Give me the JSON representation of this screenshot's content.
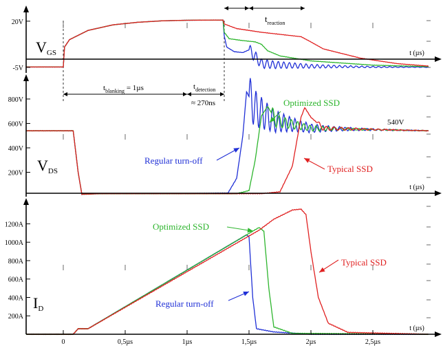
{
  "colors": {
    "regular": "#1f2fd6",
    "optimized": "#2db52d",
    "typical": "#e02020",
    "axis": "#000000",
    "tick": "#000000"
  },
  "chart_data": [
    {
      "type": "line",
      "ylabel_main": "V",
      "ylabel_sub": "GS",
      "yticks": [
        {
          "value": 20,
          "label": "20V"
        },
        {
          "value": -5,
          "label": "-5V"
        }
      ],
      "ylim": [
        -8,
        27
      ],
      "xlabel": "t (µs)",
      "annotations": {
        "t_reaction_main": "t",
        "t_reaction_sub": "reaction"
      },
      "series": [
        {
          "key": "regular",
          "points": [
            [
              -0.3,
              -4.8
            ],
            [
              0,
              -4.8
            ],
            [
              0.01,
              6
            ],
            [
              0.05,
              10
            ],
            [
              0.2,
              15
            ],
            [
              0.4,
              18
            ],
            [
              0.6,
              19.4
            ],
            [
              0.8,
              20.2
            ],
            [
              1.0,
              20.5
            ],
            [
              1.2,
              20.6
            ],
            [
              1.29,
              20.6
            ],
            [
              1.3,
              12
            ],
            [
              1.32,
              6
            ],
            [
              1.38,
              3.5
            ],
            [
              1.45,
              3
            ],
            [
              1.5,
              4.5
            ],
            [
              1.55,
              0.8
            ],
            [
              1.6,
              -3
            ],
            [
              1.7,
              -3.6
            ],
            [
              2.0,
              -4.4
            ],
            [
              2.5,
              -4.8
            ],
            [
              2.95,
              -4.9
            ]
          ]
        },
        {
          "key": "optimized",
          "points": [
            [
              -0.3,
              -4.8
            ],
            [
              0,
              -4.8
            ],
            [
              0.01,
              6
            ],
            [
              0.05,
              10
            ],
            [
              0.2,
              15
            ],
            [
              0.4,
              18
            ],
            [
              0.6,
              19.4
            ],
            [
              0.8,
              20.2
            ],
            [
              1.0,
              20.5
            ],
            [
              1.2,
              20.6
            ],
            [
              1.29,
              20.6
            ],
            [
              1.3,
              14
            ],
            [
              1.34,
              10.5
            ],
            [
              1.45,
              9.5
            ],
            [
              1.55,
              8.8
            ],
            [
              1.6,
              7.5
            ],
            [
              1.65,
              4
            ],
            [
              1.75,
              1.2
            ],
            [
              2.0,
              -1.5
            ],
            [
              2.5,
              -3.8
            ],
            [
              2.95,
              -4.6
            ]
          ]
        },
        {
          "key": "typical",
          "points": [
            [
              -0.3,
              -4.8
            ],
            [
              0,
              -4.8
            ],
            [
              0.01,
              6
            ],
            [
              0.05,
              10
            ],
            [
              0.2,
              15
            ],
            [
              0.4,
              18
            ],
            [
              0.6,
              19.4
            ],
            [
              0.8,
              20.2
            ],
            [
              1.0,
              20.5
            ],
            [
              1.2,
              20.6
            ],
            [
              1.29,
              20.6
            ],
            [
              1.3,
              18.5
            ],
            [
              1.4,
              16
            ],
            [
              1.6,
              14
            ],
            [
              1.8,
              12.5
            ],
            [
              1.92,
              11.6
            ],
            [
              1.98,
              9.5
            ],
            [
              2.1,
              5
            ],
            [
              2.4,
              0
            ],
            [
              2.7,
              -3
            ],
            [
              2.95,
              -4.3
            ]
          ]
        }
      ]
    },
    {
      "type": "line",
      "ylabel_main": "V",
      "ylabel_sub": "DS",
      "yticks": [
        {
          "value": 800,
          "label": "800V"
        },
        {
          "value": 600,
          "label": "600V"
        },
        {
          "value": 400,
          "label": "400V"
        },
        {
          "value": 200,
          "label": "200V"
        }
      ],
      "ylim": [
        0,
        980
      ],
      "xlabel": "t (µs)",
      "annotations": {
        "t_blanking_main": "t",
        "t_blanking_sub": "blanking",
        "t_blanking_rest": " = 1µs",
        "t_detection_main": "t",
        "t_detection_sub": "detection",
        "approx": "≈ 270ns",
        "v540": "540V",
        "optimized": "Optimized SSD",
        "regular": "Regular turn-off",
        "typical": "Typical SSD"
      },
      "series": [
        {
          "key": "regular",
          "points": [
            [
              -0.3,
              540
            ],
            [
              0.08,
              540
            ],
            [
              0.12,
              200
            ],
            [
              0.15,
              20
            ],
            [
              0.3,
              25
            ],
            [
              1.0,
              25
            ],
            [
              1.33,
              30
            ],
            [
              1.4,
              150
            ],
            [
              1.45,
              500
            ],
            [
              1.48,
              860
            ],
            [
              1.55,
              720
            ],
            [
              1.7,
              620
            ],
            [
              2.0,
              560
            ],
            [
              2.95,
              540
            ]
          ]
        },
        {
          "key": "optimized",
          "points": [
            [
              -0.3,
              540
            ],
            [
              0.08,
              540
            ],
            [
              0.12,
              200
            ],
            [
              0.15,
              20
            ],
            [
              0.3,
              25
            ],
            [
              1.0,
              25
            ],
            [
              1.4,
              25
            ],
            [
              1.5,
              50
            ],
            [
              1.55,
              300
            ],
            [
              1.6,
              660
            ],
            [
              1.65,
              740
            ],
            [
              1.72,
              620
            ],
            [
              2.0,
              560
            ],
            [
              2.95,
              540
            ]
          ]
        },
        {
          "key": "typical",
          "points": [
            [
              -0.3,
              540
            ],
            [
              0.08,
              540
            ],
            [
              0.12,
              200
            ],
            [
              0.15,
              20
            ],
            [
              0.3,
              25
            ],
            [
              1.0,
              25
            ],
            [
              1.6,
              25
            ],
            [
              1.75,
              40
            ],
            [
              1.85,
              250
            ],
            [
              1.92,
              650
            ],
            [
              1.95,
              730
            ],
            [
              2.0,
              650
            ],
            [
              2.1,
              560
            ],
            [
              2.95,
              540
            ]
          ]
        }
      ]
    },
    {
      "type": "line",
      "ylabel_main": "I",
      "ylabel_sub": "D",
      "yticks": [
        {
          "value": 1200,
          "label": "1200A"
        },
        {
          "value": 1000,
          "label": "1000A"
        },
        {
          "value": 800,
          "label": "800A"
        },
        {
          "value": 600,
          "label": "600A"
        },
        {
          "value": 400,
          "label": "400A"
        },
        {
          "value": 200,
          "label": "200A"
        }
      ],
      "ylim": [
        0,
        1450
      ],
      "xlabel": "t (µs)",
      "xticks": [
        {
          "value": 0,
          "label": "0"
        },
        {
          "value": 0.5,
          "label": "0,5µs"
        },
        {
          "value": 1,
          "label": "1µs"
        },
        {
          "value": 1.5,
          "label": "1,5µs"
        },
        {
          "value": 2,
          "label": "2µs"
        },
        {
          "value": 2.5,
          "label": "2,5µs"
        }
      ],
      "xlim": [
        -0.3,
        3.0
      ],
      "annotations": {
        "optimized": "Optimized SSD",
        "typical": "Typical SSD",
        "regular": "Regular turn-off"
      },
      "series": [
        {
          "key": "regular",
          "points": [
            [
              -0.3,
              0
            ],
            [
              0.08,
              0
            ],
            [
              0.12,
              60
            ],
            [
              0.2,
              60
            ],
            [
              1.48,
              1080
            ],
            [
              1.5,
              1060
            ],
            [
              1.53,
              400
            ],
            [
              1.56,
              60
            ],
            [
              1.7,
              25
            ],
            [
              2.0,
              0
            ],
            [
              2.95,
              0
            ]
          ]
        },
        {
          "key": "optimized",
          "points": [
            [
              -0.3,
              0
            ],
            [
              0.08,
              0
            ],
            [
              0.12,
              60
            ],
            [
              0.2,
              60
            ],
            [
              1.58,
              1160
            ],
            [
              1.62,
              1120
            ],
            [
              1.66,
              500
            ],
            [
              1.7,
              80
            ],
            [
              1.85,
              10
            ],
            [
              2.95,
              0
            ]
          ]
        },
        {
          "key": "typical",
          "points": [
            [
              -0.3,
              0
            ],
            [
              0.08,
              0
            ],
            [
              0.12,
              60
            ],
            [
              0.2,
              60
            ],
            [
              1.58,
              1130
            ],
            [
              1.7,
              1250
            ],
            [
              1.85,
              1350
            ],
            [
              1.92,
              1360
            ],
            [
              1.96,
              1300
            ],
            [
              2.0,
              900
            ],
            [
              2.06,
              400
            ],
            [
              2.14,
              120
            ],
            [
              2.3,
              20
            ],
            [
              2.95,
              0
            ]
          ]
        }
      ]
    }
  ]
}
